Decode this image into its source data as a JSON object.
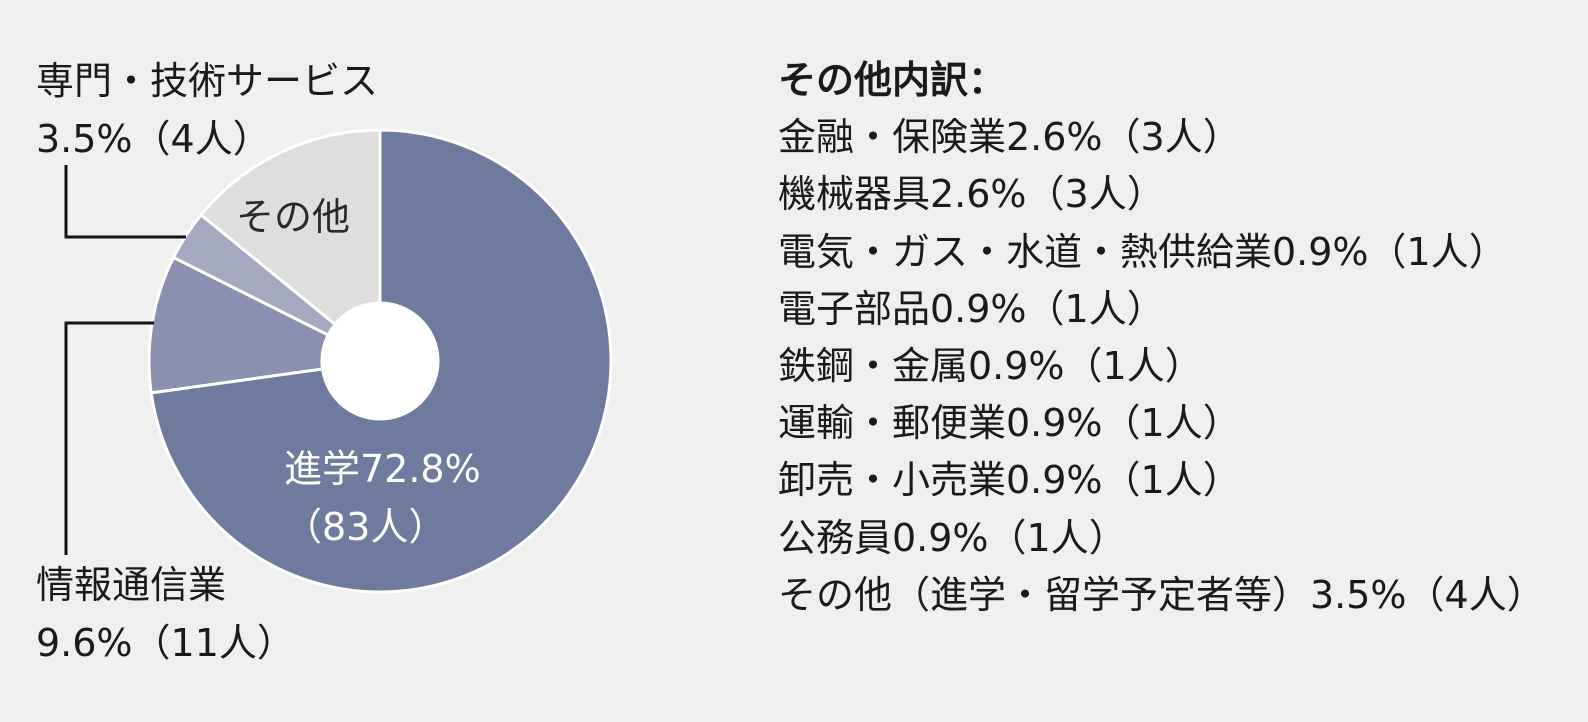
{
  "chart_data": {
    "type": "pie",
    "donut": true,
    "slices": [
      {
        "name": "進学",
        "value": 72.8,
        "count": 83,
        "color": "#6f7b9e"
      },
      {
        "name": "情報通信業",
        "value": 9.6,
        "count": 11,
        "color": "#8a90ad"
      },
      {
        "name": "専門・技術サービス",
        "value": 3.5,
        "count": 4,
        "color": "#a4a8c1"
      },
      {
        "name": "その他",
        "value": 14.1,
        "color": "#dedede"
      }
    ]
  },
  "labels": {
    "tech_name": "専門・技術サービス",
    "tech_value": "3.5%（4人）",
    "info_name": "情報通信業",
    "info_value": "9.6%（11人）",
    "other_inner": "その他",
    "shingaku_line1": "進学72.8%",
    "shingaku_line2": "（83人）"
  },
  "breakdown": {
    "title": "その他内訳：",
    "items": [
      "金融・保険業2.6%（3人）",
      "機械器具2.6%（3人）",
      "電気・ガス・水道・熱供給業0.9%（1人）",
      "電子部品0.9%（1人）",
      "鉄鋼・金属0.9%（1人）",
      "運輸・郵便業0.9%（1人）",
      "卸売・小売業0.9%（1人）",
      "公務員0.9%（1人）",
      "その他（進学・留学予定者等）3.5%（4人）"
    ]
  }
}
